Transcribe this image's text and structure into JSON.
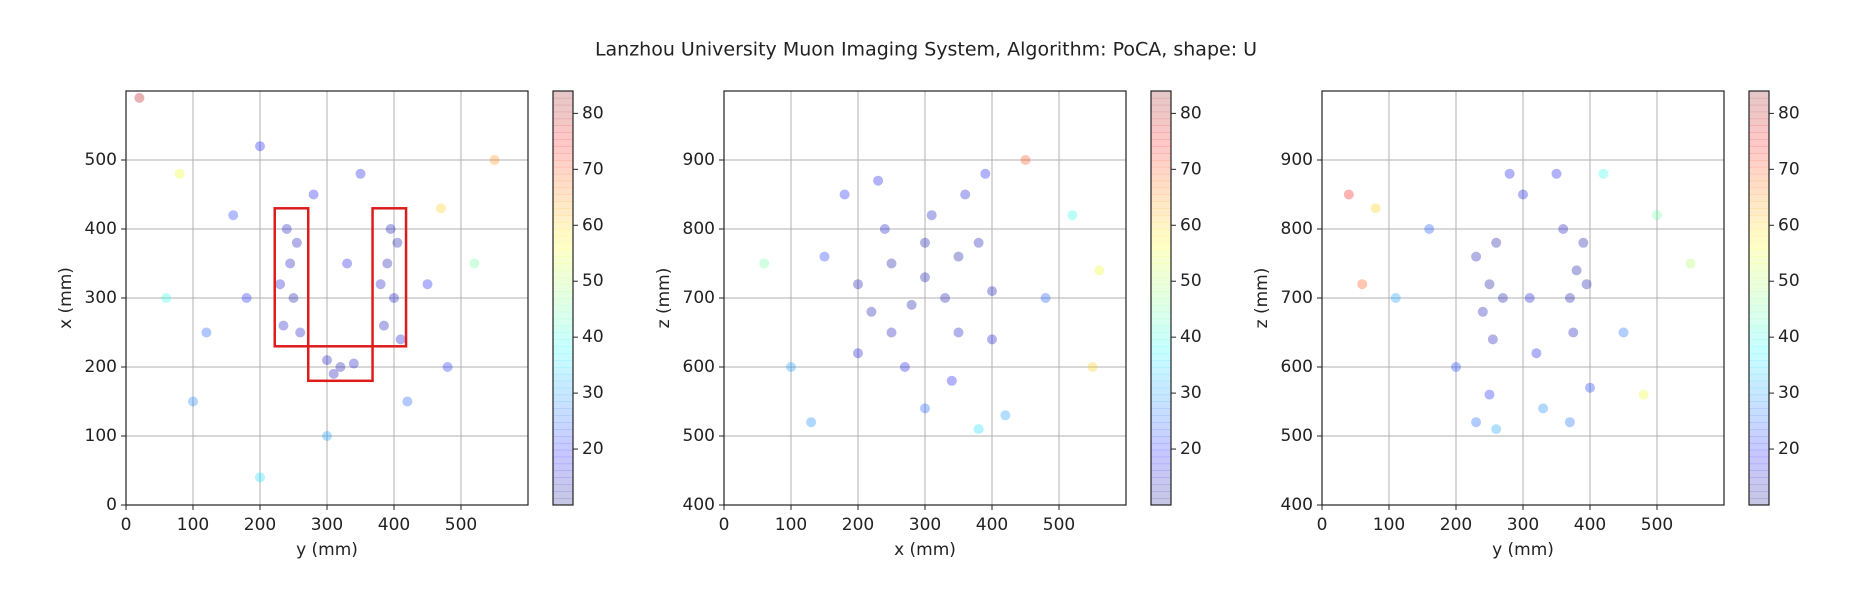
{
  "title": "Lanzhou University Muon Imaging System, Algorithm: PoCA, shape: U",
  "chart_data": [
    {
      "type": "scatter",
      "xlabel": "y (mm)",
      "ylabel": "x (mm)",
      "xlim": [
        0,
        600
      ],
      "ylim": [
        0,
        600
      ],
      "xticks": [
        0,
        100,
        200,
        300,
        400,
        500
      ],
      "yticks": [
        0,
        100,
        200,
        300,
        400,
        500
      ],
      "grid": true,
      "alpha": 0.3,
      "series": [
        {
          "x": [
            240,
            245,
            250,
            235,
            255,
            230,
            260,
            300,
            320,
            340,
            310,
            395,
            390,
            400,
            385,
            405,
            380,
            410,
            280,
            350,
            180,
            450,
            160,
            480,
            120,
            300,
            520,
            80,
            60,
            550,
            200,
            420,
            100,
            330,
            200,
            470,
            20
          ],
          "y": [
            400,
            350,
            300,
            260,
            380,
            320,
            250,
            210,
            200,
            205,
            190,
            400,
            350,
            300,
            260,
            380,
            320,
            240,
            450,
            480,
            300,
            320,
            420,
            200,
            250,
            100,
            350,
            480,
            300,
            500,
            40,
            150,
            150,
            350,
            520,
            430,
            590
          ],
          "c": [
            15,
            14,
            13,
            15,
            14,
            16,
            15,
            14,
            13,
            15,
            14,
            14,
            13,
            15,
            14,
            13,
            15,
            16,
            18,
            17,
            20,
            19,
            22,
            21,
            24,
            30,
            45,
            55,
            40,
            65,
            35,
            25,
            28,
            17,
            20,
            60,
            80
          ]
        }
      ],
      "rectangles": [
        [
          222,
          230,
          272,
          430
        ],
        [
          368,
          230,
          418,
          430
        ],
        [
          272,
          180,
          368,
          230
        ]
      ],
      "rectangle_color": "#dd1c1c",
      "colorbar": {
        "cmap": "jet",
        "clim": [
          10,
          84
        ],
        "ticks": [
          20,
          30,
          40,
          50,
          60,
          70,
          80
        ],
        "alpha": 0.22
      }
    },
    {
      "type": "scatter",
      "xlabel": "x (mm)",
      "ylabel": "z (mm)",
      "xlim": [
        0,
        600
      ],
      "ylim": [
        400,
        1000
      ],
      "xticks": [
        0,
        100,
        200,
        300,
        400,
        500
      ],
      "yticks": [
        400,
        500,
        600,
        700,
        800,
        900
      ],
      "grid": true,
      "alpha": 0.3,
      "series": [
        {
          "x": [
            200,
            250,
            300,
            350,
            400,
            220,
            280,
            330,
            380,
            240,
            310,
            360,
            200,
            270,
            340,
            400,
            230,
            390,
            300,
            420,
            380,
            150,
            480,
            100,
            520,
            60,
            550,
            450,
            130,
            250,
            350,
            300,
            180,
            560
          ],
          "y": [
            720,
            750,
            730,
            760,
            710,
            680,
            690,
            700,
            780,
            800,
            820,
            850,
            620,
            600,
            580,
            640,
            870,
            880,
            540,
            530,
            510,
            760,
            700,
            600,
            820,
            750,
            600,
            900,
            520,
            650,
            650,
            780,
            850,
            740
          ],
          "c": [
            13,
            12,
            13,
            12,
            14,
            13,
            12,
            13,
            14,
            15,
            15,
            16,
            16,
            17,
            18,
            16,
            17,
            18,
            25,
            30,
            35,
            22,
            24,
            30,
            40,
            45,
            60,
            70,
            28,
            14,
            15,
            13,
            20,
            55
          ]
        }
      ],
      "colorbar": {
        "cmap": "jet",
        "clim": [
          10,
          84
        ],
        "ticks": [
          20,
          30,
          40,
          50,
          60,
          70,
          80
        ],
        "alpha": 0.22
      }
    },
    {
      "type": "scatter",
      "xlabel": "y (mm)",
      "ylabel": "z (mm)",
      "xlim": [
        0,
        600
      ],
      "ylim": [
        400,
        1000
      ],
      "xticks": [
        0,
        100,
        200,
        300,
        400,
        500
      ],
      "yticks": [
        400,
        500,
        600,
        700,
        800,
        900
      ],
      "grid": true,
      "alpha": 0.3,
      "series": [
        {
          "x": [
            250,
            240,
            260,
            255,
            230,
            270,
            380,
            370,
            390,
            375,
            395,
            360,
            310,
            320,
            300,
            280,
            350,
            250,
            230,
            260,
            400,
            370,
            160,
            450,
            110,
            500,
            80,
            550,
            60,
            420,
            200,
            330,
            480,
            40
          ],
          "y": [
            720,
            680,
            780,
            640,
            760,
            700,
            740,
            700,
            780,
            650,
            720,
            800,
            700,
            620,
            850,
            880,
            880,
            560,
            520,
            510,
            570,
            520,
            800,
            650,
            700,
            820,
            830,
            750,
            720,
            880,
            600,
            540,
            560,
            850
          ],
          "c": [
            12,
            13,
            12,
            14,
            13,
            13,
            12,
            13,
            12,
            14,
            13,
            14,
            16,
            17,
            17,
            18,
            18,
            20,
            25,
            30,
            22,
            26,
            24,
            26,
            30,
            45,
            60,
            50,
            70,
            40,
            22,
            28,
            55,
            75
          ]
        }
      ],
      "colorbar": {
        "cmap": "jet",
        "clim": [
          10,
          84
        ],
        "ticks": [
          20,
          30,
          40,
          50,
          60,
          70,
          80
        ],
        "alpha": 0.22
      }
    }
  ]
}
